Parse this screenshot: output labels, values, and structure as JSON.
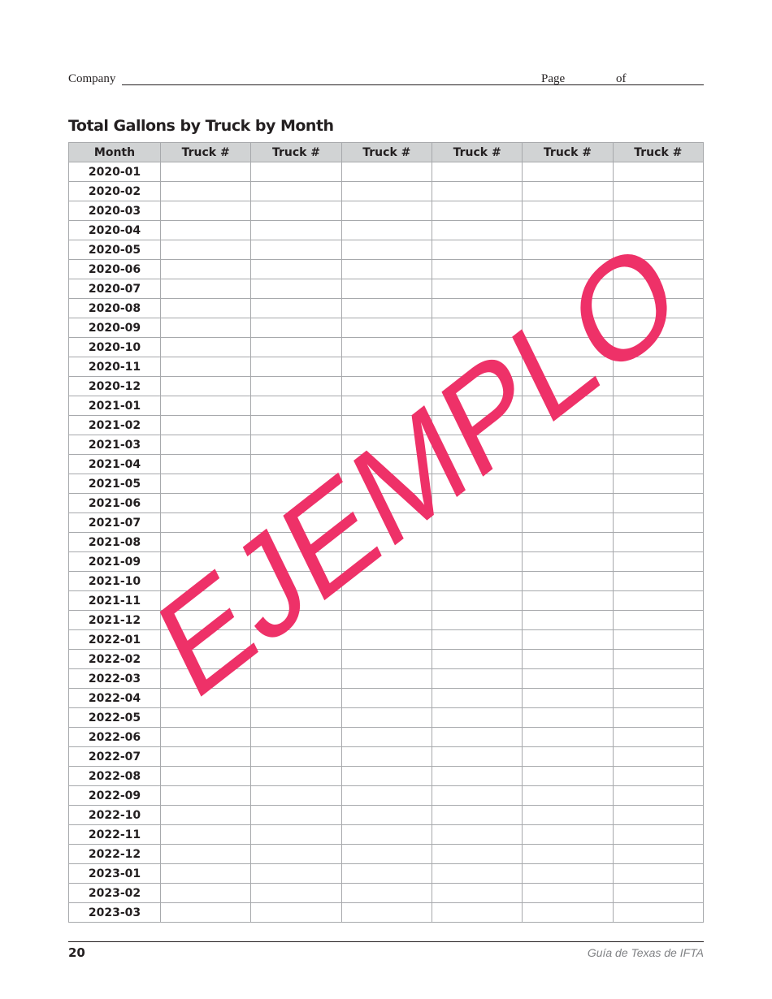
{
  "header": {
    "company_label": "Company",
    "page_label": "Page",
    "of_label": "of"
  },
  "title": "Total Gallons by Truck by Month",
  "table": {
    "columns": [
      "Month",
      "Truck #",
      "Truck #",
      "Truck #",
      "Truck #",
      "Truck #",
      "Truck #"
    ],
    "months": [
      "2020-01",
      "2020-02",
      "2020-03",
      "2020-04",
      "2020-05",
      "2020-06",
      "2020-07",
      "2020-08",
      "2020-09",
      "2020-10",
      "2020-11",
      "2020-12",
      "2021-01",
      "2021-02",
      "2021-03",
      "2021-04",
      "2021-05",
      "2021-06",
      "2021-07",
      "2021-08",
      "2021-09",
      "2021-10",
      "2021-11",
      "2021-12",
      "2022-01",
      "2022-02",
      "2022-03",
      "2022-04",
      "2022-05",
      "2022-06",
      "2022-07",
      "2022-08",
      "2022-09",
      "2022-10",
      "2022-11",
      "2022-12",
      "2023-01",
      "2023-02",
      "2023-03"
    ]
  },
  "watermark": {
    "text": "EJEMPLO",
    "color": "#ee3168"
  },
  "footer": {
    "page_number": "20",
    "guide_title": "Guía de Texas de IFTA"
  }
}
